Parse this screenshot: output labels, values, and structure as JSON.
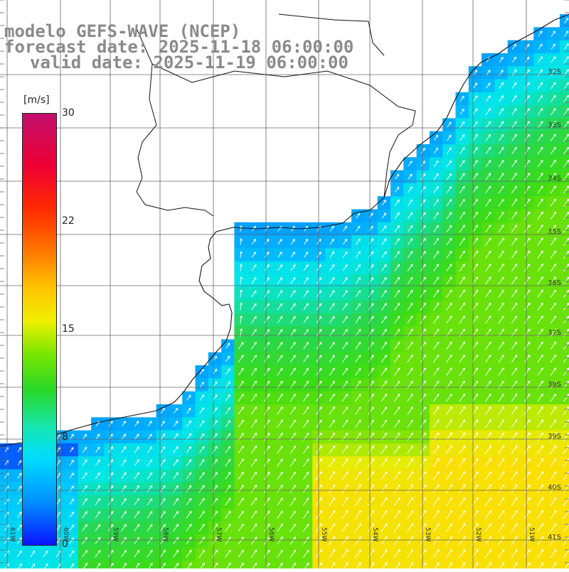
{
  "title": {
    "model": "modelo GEFS-WAVE (NCEP)",
    "forecast": "forecast date: 2025-11-18 06:00:00",
    "valid": "valid date: 2025-11-19 06:00:00"
  },
  "colorbar": {
    "unit": "[m/s]",
    "ticks": [
      "30",
      "22",
      "15",
      "8",
      "0"
    ],
    "colors": [
      "#0a14ff",
      "#0090ff",
      "#00dcff",
      "#14e6b4",
      "#2ad828",
      "#76e600",
      "#f0f000",
      "#ffc000",
      "#ff7800",
      "#ff2a00",
      "#ee0034",
      "#c2106e"
    ]
  },
  "axes": {
    "lon_labels": [
      "61W",
      "60W",
      "59W",
      "58W",
      "57W",
      "56W",
      "55W",
      "54W",
      "53W",
      "52W",
      "51W"
    ],
    "lat_labels": [
      "32S",
      "33S",
      "34S",
      "35S",
      "36S",
      "37S",
      "38S",
      "39S",
      "40S",
      "41S"
    ]
  },
  "field": {
    "variable": "wind speed",
    "arrow_color": "#ffffff",
    "land_color": "#ffffff",
    "coastline_color": "#111111",
    "grid_color": "#666666"
  }
}
